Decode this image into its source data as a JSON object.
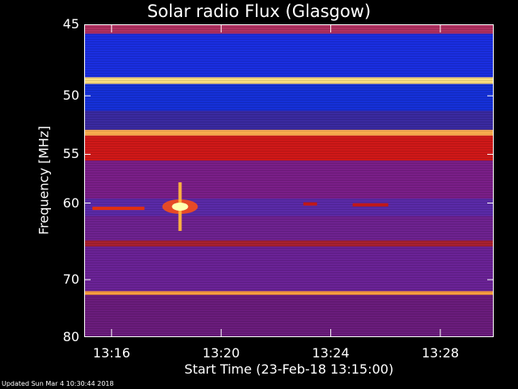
{
  "chart_data": {
    "type": "heatmap",
    "title": "Solar radio Flux (Glasgow)",
    "ylabel": "Frequency [MHz]",
    "xlabel": "Start Time (23-Feb-18 13:15:00)",
    "y_ticks": [
      45,
      50,
      55,
      60,
      70,
      80
    ],
    "x_ticks": [
      "13:16",
      "13:20",
      "13:24",
      "13:28"
    ],
    "x_tick_minutes": [
      16,
      20,
      24,
      28
    ],
    "xlim_minutes": [
      15,
      29.95
    ],
    "ylim_mhz": [
      45,
      80
    ],
    "y_scale": "reciprocal",
    "bands": [
      {
        "f1": 45,
        "f2": 45.6,
        "color": "#b03060"
      },
      {
        "f1": 45.6,
        "f2": 48.6,
        "color": "#1a2ee0"
      },
      {
        "f1": 48.6,
        "f2": 49.1,
        "color": "#ffe080"
      },
      {
        "f1": 49.1,
        "f2": 51.2,
        "color": "#1530d8"
      },
      {
        "f1": 51.2,
        "f2": 52.8,
        "color": "#3a2aa0"
      },
      {
        "f1": 52.8,
        "f2": 53.3,
        "color": "#ffb050"
      },
      {
        "f1": 53.3,
        "f2": 55.6,
        "color": "#d01818"
      },
      {
        "f1": 55.6,
        "f2": 59.5,
        "color": "#7a1e88"
      },
      {
        "f1": 59.5,
        "f2": 61.5,
        "color": "#5a2aa8"
      },
      {
        "f1": 61.5,
        "f2": 64.5,
        "color": "#6e2290"
      },
      {
        "f1": 64.5,
        "f2": 65.3,
        "color": "#a82030"
      },
      {
        "f1": 65.3,
        "f2": 71.8,
        "color": "#6a2296"
      },
      {
        "f1": 71.8,
        "f2": 72.4,
        "color": "#ffa040"
      },
      {
        "f1": 72.4,
        "f2": 80,
        "color": "#6a1c7c"
      }
    ],
    "features": [
      {
        "t": 18.5,
        "f": 60.4,
        "type": "burst",
        "color": "#ffffb0"
      },
      {
        "t": 15.3,
        "f": 60.6,
        "type": "streak",
        "t2": 17.2,
        "color": "#e03010"
      },
      {
        "t": 23.0,
        "f": 60.1,
        "type": "streak",
        "t2": 23.5,
        "color": "#c01818"
      },
      {
        "t": 24.8,
        "f": 60.2,
        "type": "streak",
        "t2": 26.1,
        "color": "#c01818"
      }
    ]
  },
  "footer": {
    "updated": "Updated Sun Mar  4 10:30:44 2018"
  },
  "colors": {
    "background": "#000000",
    "axis": "#ffffff"
  }
}
